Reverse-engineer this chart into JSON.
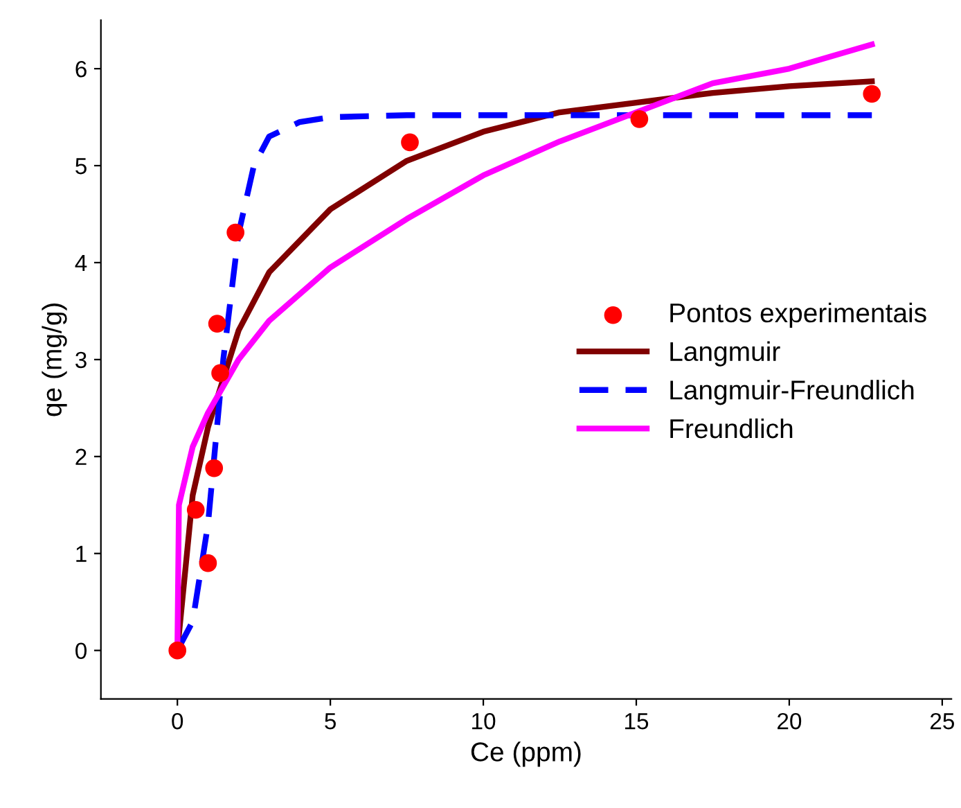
{
  "chart_data": {
    "type": "line",
    "xlabel": "Ce (ppm)",
    "ylabel": "qe (mg/g)",
    "xlim": [
      -2.5,
      25.3
    ],
    "xticks": [
      0,
      5,
      10,
      15,
      20,
      25
    ],
    "ylim": [
      -0.5,
      6.5
    ],
    "yticks": [
      0,
      1,
      2,
      3,
      4,
      5,
      6
    ],
    "grid": false,
    "legend": "right",
    "series": [
      {
        "name": "Pontos experimentais",
        "type": "scatter",
        "marker": "circle",
        "color": "#ff0000",
        "x": [
          0,
          0.6,
          1.0,
          1.2,
          1.3,
          1.4,
          1.9,
          7.6,
          15.1,
          22.7
        ],
        "values": [
          0,
          1.45,
          0.9,
          1.88,
          3.37,
          2.86,
          4.31,
          5.24,
          5.48,
          5.74
        ]
      },
      {
        "name": "Langmuir",
        "line_style": "solid",
        "color": "#800000",
        "x": [
          0,
          0.5,
          1,
          2,
          3,
          5,
          7.5,
          10,
          12.5,
          15,
          17.5,
          20,
          22.7
        ],
        "values": [
          0,
          1.6,
          2.3,
          3.3,
          3.9,
          4.55,
          5.05,
          5.35,
          5.55,
          5.65,
          5.75,
          5.82,
          5.87
        ]
      },
      {
        "name": "Langmuir-Freundlich",
        "line_style": "dashed",
        "color": "#0000ff",
        "x": [
          0,
          0.5,
          1,
          1.5,
          2,
          2.5,
          3,
          4,
          5,
          7.5,
          10,
          22.7
        ],
        "values": [
          0,
          0.3,
          1.3,
          3.0,
          4.3,
          5.0,
          5.3,
          5.45,
          5.5,
          5.52,
          5.52,
          5.52
        ]
      },
      {
        "name": "Freundlich",
        "line_style": "solid",
        "color": "#ff00ff",
        "x": [
          0,
          0.05,
          0.5,
          1,
          2,
          3,
          5,
          7.5,
          10,
          12.5,
          15,
          17.5,
          20,
          22.7
        ],
        "values": [
          0,
          1.5,
          2.1,
          2.45,
          3.0,
          3.4,
          3.95,
          4.45,
          4.9,
          5.25,
          5.55,
          5.85,
          6.0,
          6.25
        ]
      }
    ]
  }
}
